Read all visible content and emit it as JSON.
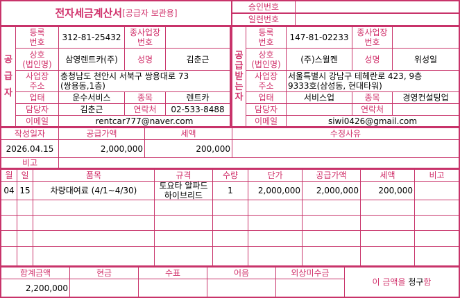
{
  "colors": {
    "border": "#c8336a",
    "label": "#d0306a"
  },
  "header": {
    "title": "전자세금계산서",
    "subtitle": "[공급자 보관용]",
    "approval_label": "승인번호",
    "approval_value": "",
    "serial_label": "일련번호",
    "serial_value": ""
  },
  "labels": {
    "reg_no": "등록\n번호",
    "sub_reg_no": "종사업장\n번호",
    "company": "상호\n(법인명)",
    "name": "성명",
    "address": "사업장\n주소",
    "business_type": "업태",
    "business_item": "종목",
    "contact_person": "담당자",
    "phone": "연락처",
    "email": "이메일"
  },
  "supplier": {
    "side_label": "공\n\n급\n\n자",
    "reg_no": "312-81-25432",
    "sub_reg_no": "",
    "company": "삼영렌트카(주)",
    "name": "김춘근",
    "address": "충청남도 천안시 서북구  쌍용대로 73\n(쌍용동,1층)",
    "business_type": "운수서비스",
    "business_item": "렌트카",
    "contact_person": "김춘근",
    "phone": "02-533-8488",
    "email": "rentcar777@naver.com"
  },
  "receiver": {
    "side_label": "공\n급\n받\n는\n자",
    "reg_no": "147-81-02233",
    "sub_reg_no": "",
    "company": "(주)스윌켄",
    "name": "위성일",
    "address": "서울특별시 강남구 테헤란로 423, 9층\n9333호(삼성동, 현대타워)",
    "business_type": "서비스업",
    "business_item": "경영컨설팅업",
    "contact_person": "",
    "phone": "",
    "email": "siwi0426@gmail.com"
  },
  "summary": {
    "date_label": "작성일자",
    "supply_label": "공급가액",
    "tax_label": "세액",
    "reason_label": "수정사유",
    "date": "2026.04.15",
    "supply": "2,000,000",
    "tax": "200,000",
    "reason": "",
    "note_label": "비고",
    "note": ""
  },
  "items_header": {
    "month": "월",
    "day": "일",
    "item": "품목",
    "spec": "규격",
    "qty": "수량",
    "unit_price": "단가",
    "supply": "공급가액",
    "tax": "세액",
    "note": "비고"
  },
  "items": [
    {
      "month": "04",
      "day": "15",
      "item": "차량대여료 (4/1~4/30)",
      "spec": "토요타 알파드\n하이브리드",
      "qty": "1",
      "unit_price": "2,000,000",
      "supply": "2,000,000",
      "tax": "200,000",
      "note": ""
    }
  ],
  "footer": {
    "total_label": "합계금액",
    "cash_label": "현금",
    "check_label": "수표",
    "bill_label": "어음",
    "credit_label": "외상미수금",
    "total": "2,200,000",
    "cash": "",
    "check": "",
    "bill": "",
    "credit": "",
    "claim_prefix": "이 금액을",
    "claim_word": "청구",
    "claim_suffix": "함"
  }
}
